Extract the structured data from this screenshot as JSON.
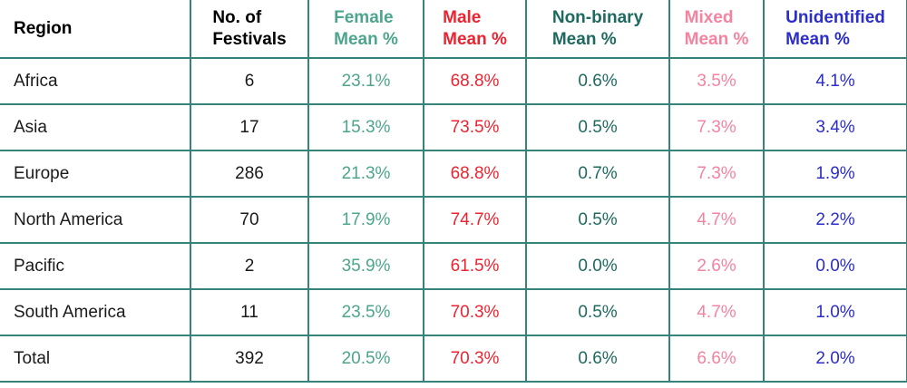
{
  "colors": {
    "border": "#35837A",
    "header_black": "#000000",
    "cell_black": "#1A1A1A",
    "female": "#4CA58C",
    "male": "#EC2430",
    "nonbinary": "#1E6A60",
    "mixed": "#F583A0",
    "unidentified": "#2B2EC8"
  },
  "table": {
    "columns": [
      {
        "id": "region",
        "label_lines": [
          "Region"
        ],
        "header_color": "#000000",
        "cell_color": "#1A1A1A"
      },
      {
        "id": "festivals",
        "label_lines": [
          "No. of",
          "Festivals"
        ],
        "header_color": "#000000",
        "cell_color": "#1A1A1A"
      },
      {
        "id": "female",
        "label_lines": [
          "Female",
          "Mean %"
        ],
        "header_color": "#4CA58C",
        "cell_color": "#4CA58C"
      },
      {
        "id": "male",
        "label_lines": [
          "Male",
          "Mean %"
        ],
        "header_color": "#EC2430",
        "cell_color": "#EC2430"
      },
      {
        "id": "nonbinary",
        "label_lines": [
          "Non-binary",
          "Mean %"
        ],
        "header_color": "#1E6A60",
        "cell_color": "#1E6A60"
      },
      {
        "id": "mixed",
        "label_lines": [
          "Mixed",
          "Mean %"
        ],
        "header_color": "#F583A0",
        "cell_color": "#F583A0"
      },
      {
        "id": "unidentified",
        "label_lines": [
          "Unidentified",
          "Mean %"
        ],
        "header_color": "#2B2EC8",
        "cell_color": "#2B2EC8"
      }
    ],
    "rows": [
      {
        "region": "Africa",
        "festivals": "6",
        "female": "23.1%",
        "male": "68.8%",
        "nonbinary": "0.6%",
        "mixed": "3.5%",
        "unidentified": "4.1%"
      },
      {
        "region": "Asia",
        "festivals": "17",
        "female": "15.3%",
        "male": "73.5%",
        "nonbinary": "0.5%",
        "mixed": "7.3%",
        "unidentified": "3.4%"
      },
      {
        "region": "Europe",
        "festivals": "286",
        "female": "21.3%",
        "male": "68.8%",
        "nonbinary": "0.7%",
        "mixed": "7.3%",
        "unidentified": "1.9%"
      },
      {
        "region": "North America",
        "festivals": "70",
        "female": "17.9%",
        "male": "74.7%",
        "nonbinary": "0.5%",
        "mixed": "4.7%",
        "unidentified": "2.2%"
      },
      {
        "region": "Pacific",
        "festivals": "2",
        "female": "35.9%",
        "male": "61.5%",
        "nonbinary": "0.0%",
        "mixed": "2.6%",
        "unidentified": "0.0%"
      },
      {
        "region": "South America",
        "festivals": "11",
        "female": "23.5%",
        "male": "70.3%",
        "nonbinary": "0.5%",
        "mixed": "4.7%",
        "unidentified": "1.0%"
      },
      {
        "region": "Total",
        "festivals": "392",
        "female": "20.5%",
        "male": "70.3%",
        "nonbinary": "0.6%",
        "mixed": "6.6%",
        "unidentified": "2.0%"
      }
    ]
  },
  "chart_data": {
    "type": "table",
    "columns": [
      "Region",
      "No. of Festivals",
      "Female Mean %",
      "Male Mean %",
      "Non-binary Mean %",
      "Mixed Mean %",
      "Unidentified Mean %"
    ],
    "rows": [
      {
        "region": "Africa",
        "no_of_festivals": 6,
        "female_mean_pct": 23.1,
        "male_mean_pct": 68.8,
        "non_binary_mean_pct": 0.6,
        "mixed_mean_pct": 3.5,
        "unidentified_mean_pct": 4.1
      },
      {
        "region": "Asia",
        "no_of_festivals": 17,
        "female_mean_pct": 15.3,
        "male_mean_pct": 73.5,
        "non_binary_mean_pct": 0.5,
        "mixed_mean_pct": 7.3,
        "unidentified_mean_pct": 3.4
      },
      {
        "region": "Europe",
        "no_of_festivals": 286,
        "female_mean_pct": 21.3,
        "male_mean_pct": 68.8,
        "non_binary_mean_pct": 0.7,
        "mixed_mean_pct": 7.3,
        "unidentified_mean_pct": 1.9
      },
      {
        "region": "North America",
        "no_of_festivals": 70,
        "female_mean_pct": 17.9,
        "male_mean_pct": 74.7,
        "non_binary_mean_pct": 0.5,
        "mixed_mean_pct": 4.7,
        "unidentified_mean_pct": 2.2
      },
      {
        "region": "Pacific",
        "no_of_festivals": 2,
        "female_mean_pct": 35.9,
        "male_mean_pct": 61.5,
        "non_binary_mean_pct": 0.0,
        "mixed_mean_pct": 2.6,
        "unidentified_mean_pct": 0.0
      },
      {
        "region": "South America",
        "no_of_festivals": 11,
        "female_mean_pct": 23.5,
        "male_mean_pct": 70.3,
        "non_binary_mean_pct": 0.5,
        "mixed_mean_pct": 4.7,
        "unidentified_mean_pct": 1.0
      },
      {
        "region": "Total",
        "no_of_festivals": 392,
        "female_mean_pct": 20.5,
        "male_mean_pct": 70.3,
        "non_binary_mean_pct": 0.6,
        "mixed_mean_pct": 6.6,
        "unidentified_mean_pct": 2.0
      }
    ]
  }
}
